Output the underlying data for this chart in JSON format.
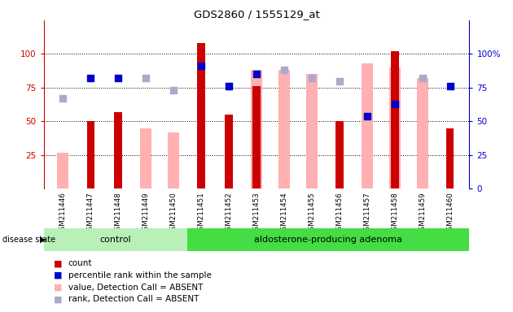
{
  "title": "GDS2860 / 1555129_at",
  "samples": [
    "GSM211446",
    "GSM211447",
    "GSM211448",
    "GSM211449",
    "GSM211450",
    "GSM211451",
    "GSM211452",
    "GSM211453",
    "GSM211454",
    "GSM211455",
    "GSM211456",
    "GSM211457",
    "GSM211458",
    "GSM211459",
    "GSM211460"
  ],
  "count": [
    null,
    50,
    57,
    null,
    null,
    108,
    55,
    76,
    null,
    null,
    50,
    null,
    102,
    null,
    45
  ],
  "percentile_rank": [
    null,
    82,
    82,
    null,
    null,
    91,
    76,
    85,
    null,
    null,
    null,
    54,
    63,
    null,
    76
  ],
  "absent_value": [
    27,
    null,
    null,
    45,
    42,
    null,
    null,
    88,
    88,
    85,
    null,
    93,
    90,
    82,
    null
  ],
  "absent_rank": [
    67,
    null,
    null,
    82,
    73,
    null,
    76,
    null,
    88,
    82,
    80,
    null,
    null,
    82,
    null
  ],
  "control_count": 5,
  "ylim_left": [
    0,
    125
  ],
  "ylim_right": [
    0,
    100
  ],
  "yticks_left": [
    25,
    50,
    75,
    100
  ],
  "yticks_right": [
    0,
    25,
    50,
    75,
    100
  ],
  "disease_split": 5,
  "bar_color_count": "#cc0000",
  "bar_color_absent": "#ffb0b0",
  "dot_color_rank": "#0000cc",
  "dot_color_absent_rank": "#aaaacc",
  "bg_color": "#ffffff",
  "plot_bg": "#ffffff",
  "label_color_left": "#cc0000",
  "label_color_right": "#0000cc",
  "control_bg": "#b8f0b8",
  "adenoma_bg": "#44dd44",
  "sample_label_bg": "#cccccc"
}
